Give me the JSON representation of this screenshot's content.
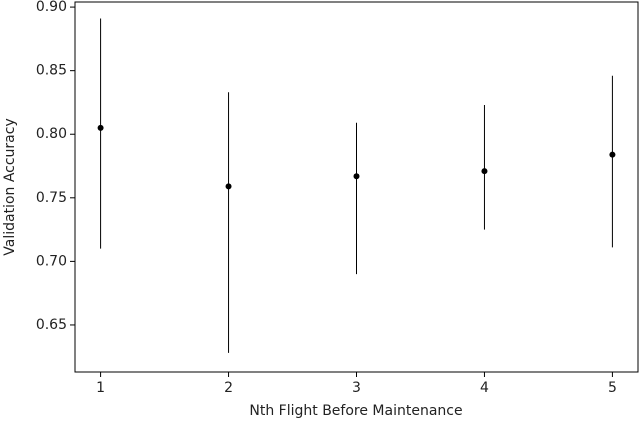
{
  "chart_data": {
    "type": "errorbar",
    "x_label": "Nth Flight Before Maintenance",
    "y_label": "Validation Accuracy",
    "x": [
      1,
      2,
      3,
      4,
      5
    ],
    "values": [
      0.805,
      0.759,
      0.767,
      0.771,
      0.784
    ],
    "lower": [
      0.71,
      0.628,
      0.69,
      0.725,
      0.711
    ],
    "upper": [
      0.891,
      0.833,
      0.809,
      0.823,
      0.846
    ],
    "color": "#000000",
    "xlim": [
      0.8,
      5.2
    ],
    "xticks": [
      1,
      2,
      3,
      4,
      5
    ],
    "ylim": [
      0.613,
      0.904
    ],
    "yticks": [
      {
        "value": 0.65,
        "label": "0.65"
      },
      {
        "value": 0.7,
        "label": "0.70"
      },
      {
        "value": 0.75,
        "label": "0.75"
      },
      {
        "value": 0.8,
        "label": "0.80"
      },
      {
        "value": 0.85,
        "label": "0.85"
      },
      {
        "value": 0.9,
        "label": "0.90"
      }
    ],
    "grid": false
  }
}
